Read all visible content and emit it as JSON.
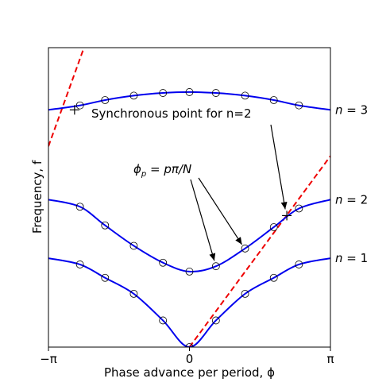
{
  "chart_data": {
    "type": "line",
    "xlabel": "Phase advance per period, ϕ",
    "ylabel": "Frequency, f",
    "xlim": [
      -3.14159,
      3.14159
    ],
    "ylim": [
      0,
      3.37
    ],
    "grid": false,
    "x_ticks": [
      {
        "value": -3.14159,
        "label": "−π"
      },
      {
        "value": 0,
        "label": "0"
      },
      {
        "value": 3.14159,
        "label": "π"
      }
    ],
    "series": [
      {
        "name": "n = 1",
        "color": "#0000ee",
        "x": [
          -3.14159,
          -2.44,
          -1.88,
          -1.24,
          -0.59,
          0,
          0.59,
          1.24,
          1.88,
          2.44,
          3.14159
        ],
        "values": [
          1.0,
          0.93,
          0.78,
          0.6,
          0.3,
          0.0,
          0.3,
          0.6,
          0.78,
          0.93,
          1.0
        ]
      },
      {
        "name": "n = 2",
        "color": "#0000ee",
        "x": [
          -3.14159,
          -2.44,
          -1.88,
          -1.24,
          -0.59,
          0,
          0.59,
          1.24,
          1.88,
          2.44,
          3.14159
        ],
        "values": [
          1.66,
          1.58,
          1.37,
          1.14,
          0.95,
          0.85,
          0.91,
          1.11,
          1.35,
          1.56,
          1.66
        ]
      },
      {
        "name": "n = 3",
        "color": "#0000ee",
        "x": [
          -3.14159,
          -2.44,
          -1.88,
          -1.24,
          -0.59,
          0,
          0.59,
          1.24,
          1.88,
          2.44,
          3.14159
        ],
        "values": [
          2.67,
          2.72,
          2.78,
          2.83,
          2.86,
          2.87,
          2.86,
          2.83,
          2.78,
          2.72,
          2.67
        ]
      }
    ],
    "light_line": {
      "color": "#ee0000",
      "style": "dashed",
      "x": [
        0,
        3.14159
      ],
      "values": [
        0,
        2.15
      ]
    },
    "light_line_left": {
      "color": "#ee0000",
      "style": "dashed",
      "x": [
        -3.14159,
        -2.35
      ],
      "values": [
        2.26,
        3.37
      ]
    },
    "markers": [
      {
        "x": -2.56,
        "y": 2.67
      },
      {
        "x": 2.17,
        "y": 1.48
      }
    ],
    "annotations": [
      {
        "text": "Synchronous point for n=2"
      },
      {
        "text": "ϕp = pπ/N",
        "math": {
          "base": "ϕ",
          "sub": "p",
          "rest": " = pπ/N"
        }
      }
    ],
    "curve_labels": [
      {
        "text": "n = 3"
      },
      {
        "text": "n = 2"
      },
      {
        "text": "n = 1"
      }
    ]
  }
}
